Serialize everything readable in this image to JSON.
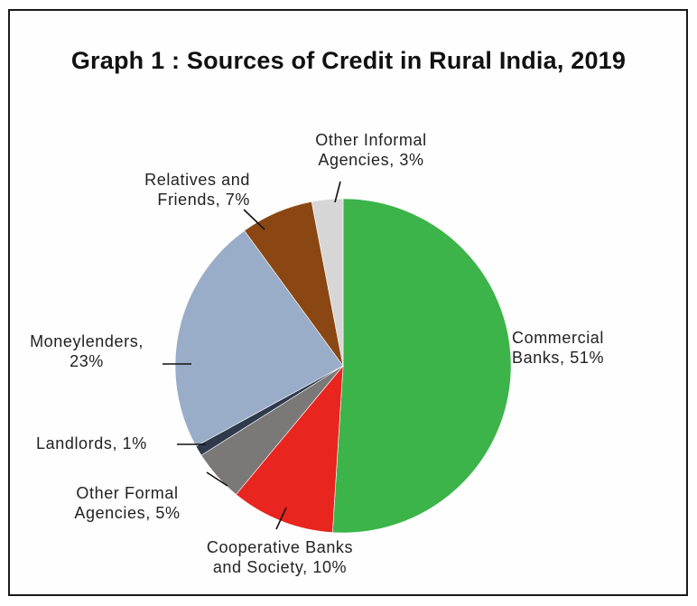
{
  "chart_data": {
    "type": "pie",
    "title": "Graph 1 : Sources of Credit in Rural India, 2019",
    "slices": [
      {
        "label_lines": [
          "Commercial",
          "Banks, 51%"
        ],
        "name": "Commercial Banks",
        "value": 51,
        "color": "#3cb44a"
      },
      {
        "label_lines": [
          "Cooperative Banks",
          "and Society, 10%"
        ],
        "name": "Cooperative Banks and Society",
        "value": 10,
        "color": "#e8251f"
      },
      {
        "label_lines": [
          "Other Formal",
          "Agencies, 5%"
        ],
        "name": "Other Formal Agencies",
        "value": 5,
        "color": "#7b7878"
      },
      {
        "label_lines": [
          "Landlords, 1%"
        ],
        "name": "Landlords",
        "value": 1,
        "color": "#2f3a4d"
      },
      {
        "label_lines": [
          "Moneylenders,",
          "23%"
        ],
        "name": "Moneylenders",
        "value": 23,
        "color": "#9aadc8"
      },
      {
        "label_lines": [
          "Relatives and",
          "Friends, 7%"
        ],
        "name": "Relatives and Friends",
        "value": 7,
        "color": "#8b4713"
      },
      {
        "label_lines": [
          "Other Informal",
          "Agencies, 3%"
        ],
        "name": "Other Informal Agencies",
        "value": 3,
        "color": "#d6d6d6"
      }
    ]
  }
}
